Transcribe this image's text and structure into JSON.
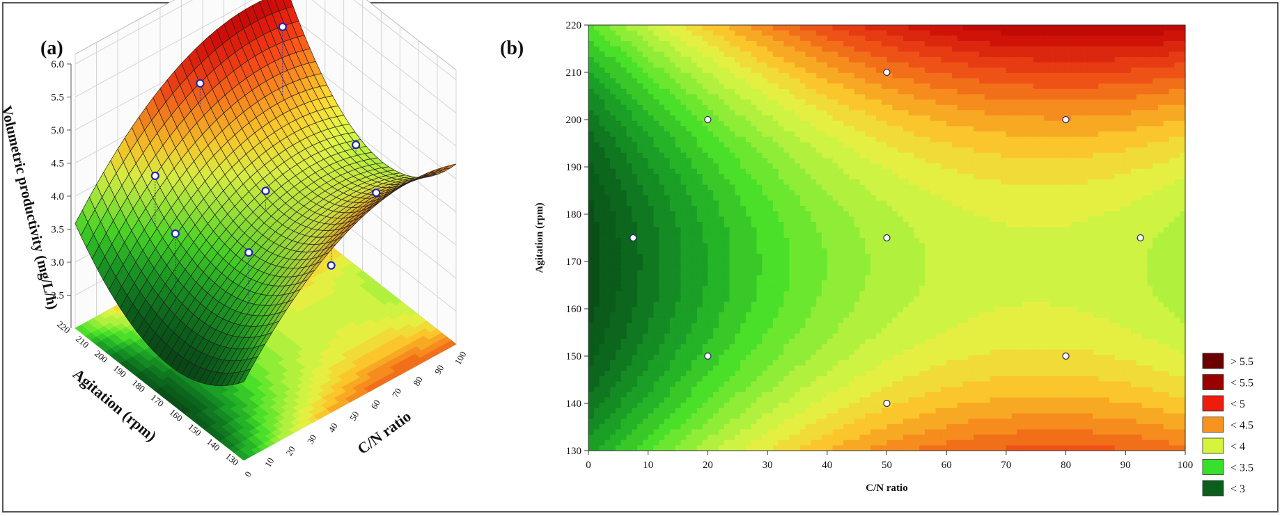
{
  "chart_data": [
    {
      "type": "surface",
      "panel_label": "(a)",
      "xlabel": "C/N ratio",
      "ylabel": "Agitation (rpm)",
      "zlabel": "Volumetric productivity (mg/L/h)",
      "x_ticks": [
        0,
        10,
        20,
        30,
        40,
        50,
        60,
        70,
        80,
        90,
        100
      ],
      "y_ticks": [
        130,
        140,
        150,
        160,
        170,
        180,
        190,
        200,
        210,
        220
      ],
      "z_ticks": [
        "2.5",
        "3.0",
        "3.5",
        "4.0",
        "4.5",
        "5.0",
        "5.5",
        "6.0"
      ],
      "xlim": [
        0,
        100
      ],
      "ylim": [
        130,
        220
      ],
      "zlim": [
        2.0,
        6.0
      ],
      "grid": true,
      "surface_shape": "saddle; high at low C/N with high agitation, low at low C/N mid agitation",
      "observed_points": [
        {
          "x": 7.5,
          "y": 175,
          "z": 4.3
        },
        {
          "x": 20,
          "y": 200,
          "z": 4.4
        },
        {
          "x": 20,
          "y": 150,
          "z": 4.35
        },
        {
          "x": 50,
          "y": 210,
          "z": 5.05
        },
        {
          "x": 50,
          "y": 175,
          "z": 4.2
        },
        {
          "x": 50,
          "y": 140,
          "z": 3.85
        },
        {
          "x": 80,
          "y": 200,
          "z": 5.6
        },
        {
          "x": 80,
          "y": 150,
          "z": 4.2
        },
        {
          "x": 92.5,
          "y": 175,
          "z": 4.15
        }
      ]
    },
    {
      "type": "contour",
      "panel_label": "(b)",
      "xlabel": "C/N ratio",
      "ylabel": "Agitation (rpm)",
      "x_ticks": [
        0,
        10,
        20,
        30,
        40,
        50,
        60,
        70,
        80,
        90,
        100
      ],
      "y_ticks": [
        130,
        140,
        150,
        160,
        170,
        180,
        190,
        200,
        210,
        220
      ],
      "xlim": [
        0,
        100
      ],
      "ylim": [
        130,
        220
      ],
      "legend_position": "right",
      "legend": [
        {
          "label": "> 5.5",
          "color": "#6b0000"
        },
        {
          "label": "< 5.5",
          "color": "#9a0000"
        },
        {
          "label": "< 5",
          "color": "#ee1c0c"
        },
        {
          "label": "< 4.5",
          "color": "#f7941d"
        },
        {
          "label": "< 4",
          "color": "#d4f53c"
        },
        {
          "label": "< 3.5",
          "color": "#39e02a"
        },
        {
          "label": "< 3",
          "color": "#0b5e1c"
        }
      ],
      "design_points": [
        {
          "x": 7.5,
          "y": 175
        },
        {
          "x": 20,
          "y": 200
        },
        {
          "x": 20,
          "y": 150
        },
        {
          "x": 50,
          "y": 210
        },
        {
          "x": 50,
          "y": 175
        },
        {
          "x": 50,
          "y": 140
        },
        {
          "x": 80,
          "y": 200
        },
        {
          "x": 80,
          "y": 150
        },
        {
          "x": 92.5,
          "y": 175
        }
      ]
    }
  ]
}
